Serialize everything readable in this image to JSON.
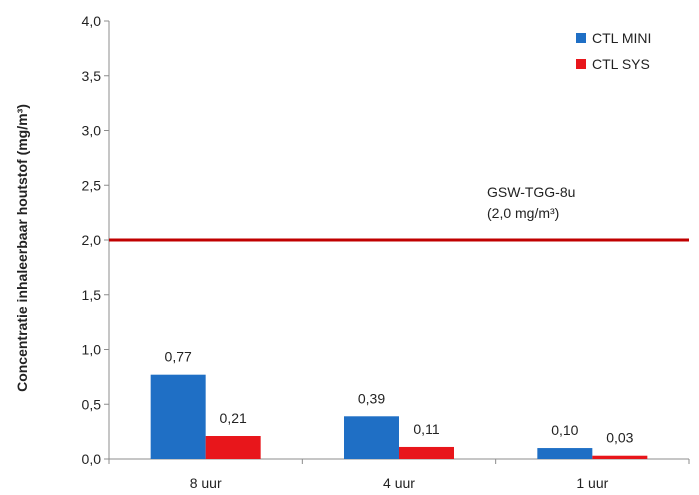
{
  "chart_data": {
    "type": "bar",
    "categories": [
      "8 uur",
      "4 uur",
      "1 uur"
    ],
    "series": [
      {
        "name": "CTL MINI",
        "values": [
          0.77,
          0.39,
          0.1
        ],
        "labels": [
          "0,77",
          "0,39",
          "0,10"
        ],
        "color": "#1F6FC5"
      },
      {
        "name": "CTL SYS",
        "values": [
          0.21,
          0.11,
          0.03
        ],
        "labels": [
          "0,21",
          "0,11",
          "0,03"
        ],
        "color": "#E8161B"
      }
    ],
    "title": "",
    "xlabel": "",
    "ylabel": "Concentratie inhaleerbaar houtstof (mg/m³)",
    "ylim": [
      0,
      4.0
    ],
    "yticks": [
      0,
      0.5,
      1.0,
      1.5,
      2.0,
      2.5,
      3.0,
      3.5,
      4.0
    ],
    "ytick_labels": [
      "0,0",
      "0,5",
      "1,0",
      "1,5",
      "2,0",
      "2,5",
      "3,0",
      "3,5",
      "4,0"
    ],
    "grid": false,
    "legend_position": "top-right",
    "reference_line": {
      "value": 2.0,
      "color": "#C00000",
      "label_line1": "GSW-TGG-8u",
      "label_line2": "(2,0 mg/m³)"
    }
  }
}
